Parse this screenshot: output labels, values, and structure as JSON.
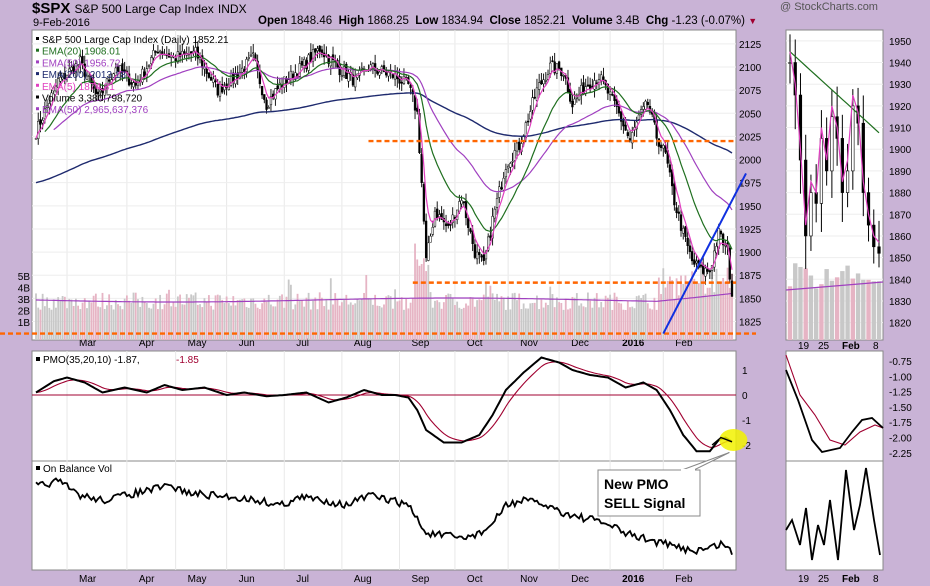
{
  "header": {
    "symbol": "$SPX",
    "name": "S&P 500 Large Cap Index",
    "exchange": "INDX",
    "date": "9-Feb-2016",
    "watermark": "@ StockCharts.com",
    "ohlc_labels": {
      "open": "Open",
      "high": "High",
      "low": "Low",
      "close": "Close",
      "volume": "Volume",
      "chg": "Chg"
    },
    "ohlc_values": {
      "open": "1848.46",
      "high": "1868.25",
      "low": "1834.94",
      "close": "1852.21",
      "volume": "3.4B",
      "chg": "-1.23 (-0.07%)"
    },
    "chg_arrow": "down-triangle-icon"
  },
  "colors": {
    "background": "#c9b3d6",
    "panel": "#ffffff",
    "ema20": "#1f6f1f",
    "ema50": "#a040c0",
    "ema200": "#1e2a6e",
    "ema5": "#e040c0",
    "volume_up": "#c8c8c8",
    "volume_down": "#e6b4c4",
    "support": "#ff6600",
    "trendline": "#1030e0",
    "pmo": "#000000",
    "pmo_signal": "#a00030",
    "zero_line": "#a00030",
    "highlight": "#f2f200"
  },
  "legend": [
    {
      "text": "S&P 500 Large Cap Index (Daily) 1852.21",
      "color": "#000000"
    },
    {
      "text": "EMA(20) 1908.01",
      "color": "#1f6f1f"
    },
    {
      "text": "EMA(50) 1956.72",
      "color": "#a040c0"
    },
    {
      "text": "EMA(200) 2013.18",
      "color": "#1e2a6e"
    },
    {
      "text": "EMA(5) 1874.81",
      "color": "#e040c0"
    },
    {
      "text": "Volume 3,380,798,720",
      "color": "#000000"
    },
    {
      "text": "EMA(50) 2,965,637,376",
      "color": "#a040c0"
    }
  ],
  "pmo_legend": {
    "label": "PMO(35,20,10)",
    "pmo": "-1.87",
    "signal": "-1.85"
  },
  "obv_legend": {
    "label": "On Balance Vol"
  },
  "annotation": {
    "line1": "New PMO",
    "line2": "SELL Signal"
  },
  "chart_data": [
    {
      "type": "candlestick",
      "name": "price-panel",
      "ylim": [
        1805,
        2140
      ],
      "yticks": [
        1825,
        1850,
        1875,
        1900,
        1925,
        1950,
        1975,
        2000,
        2025,
        2050,
        2075,
        2100,
        2125
      ],
      "volume_ticks": [
        "1B",
        "2B",
        "3B",
        "4B",
        "5B"
      ],
      "xticks": [
        "Mar",
        "Apr",
        "May",
        "Jun",
        "Jul",
        "Aug",
        "Sep",
        "Oct",
        "Nov",
        "Dec",
        "2016",
        "Feb"
      ],
      "close_anchors": [
        [
          0,
          2030
        ],
        [
          10,
          2085
        ],
        [
          20,
          2105
        ],
        [
          28,
          2065
        ],
        [
          36,
          2100
        ],
        [
          45,
          2080
        ],
        [
          55,
          2120
        ],
        [
          62,
          2110
        ],
        [
          72,
          2115
        ],
        [
          82,
          2075
        ],
        [
          90,
          2090
        ],
        [
          98,
          2110
        ],
        [
          104,
          2060
        ],
        [
          110,
          2080
        ],
        [
          120,
          2100
        ],
        [
          128,
          2120
        ],
        [
          136,
          2100
        ],
        [
          144,
          2085
        ],
        [
          150,
          2100
        ],
        [
          162,
          2090
        ],
        [
          168,
          2080
        ],
        [
          172,
          2050
        ],
        [
          174,
          1975
        ],
        [
          176,
          1890
        ],
        [
          180,
          1945
        ],
        [
          186,
          1925
        ],
        [
          192,
          1960
        ],
        [
          198,
          1900
        ],
        [
          202,
          1885
        ],
        [
          206,
          1935
        ],
        [
          212,
          1995
        ],
        [
          218,
          2015
        ],
        [
          226,
          2075
        ],
        [
          232,
          2100
        ],
        [
          238,
          2095
        ],
        [
          242,
          2060
        ],
        [
          248,
          2080
        ],
        [
          254,
          2090
        ],
        [
          262,
          2055
        ],
        [
          268,
          2020
        ],
        [
          272,
          2045
        ],
        [
          276,
          2060
        ],
        [
          280,
          2025
        ],
        [
          284,
          2005
        ],
        [
          288,
          1955
        ],
        [
          292,
          1920
        ],
        [
          296,
          1890
        ],
        [
          300,
          1880
        ],
        [
          304,
          1880
        ],
        [
          308,
          1920
        ],
        [
          312,
          1900
        ],
        [
          314,
          1852
        ]
      ],
      "support_levels": [
        2020,
        1867,
        1812
      ],
      "trendline": {
        "from": [
          283,
          1812
        ],
        "to": [
          314,
          1985
        ]
      },
      "ema20_last": 1908.01,
      "ema50_last": 1956.72,
      "ema200_last": 2013.18,
      "ema5_last": 1874.81
    },
    {
      "type": "candlestick",
      "name": "zoom-price-panel",
      "ylim": [
        1812,
        1955
      ],
      "yticks": [
        1820,
        1830,
        1840,
        1850,
        1860,
        1870,
        1880,
        1890,
        1900,
        1910,
        1920,
        1930,
        1940,
        1950
      ],
      "xticks": [
        "19",
        "25",
        "Feb",
        "8"
      ]
    },
    {
      "type": "line",
      "name": "pmo-panel",
      "ylim": [
        -2.4,
        1.6
      ],
      "yticks": [
        "1",
        "0",
        "-1",
        "-2"
      ],
      "zoom_yticks": [
        "-0.75",
        "-1.00",
        "-1.25",
        "-1.50",
        "-1.75",
        "-2.00",
        "-2.25"
      ],
      "pmo_anchors": [
        [
          0,
          0.1
        ],
        [
          8,
          0.55
        ],
        [
          14,
          0.7
        ],
        [
          22,
          0.5
        ],
        [
          30,
          0.1
        ],
        [
          40,
          0.3
        ],
        [
          50,
          0.1
        ],
        [
          58,
          0.4
        ],
        [
          66,
          0.2
        ],
        [
          76,
          0.3
        ],
        [
          86,
          0.0
        ],
        [
          94,
          0.1
        ],
        [
          104,
          -0.05
        ],
        [
          112,
          0.0
        ],
        [
          122,
          0.1
        ],
        [
          132,
          -0.3
        ],
        [
          140,
          -0.1
        ],
        [
          148,
          0.2
        ],
        [
          156,
          0.0
        ],
        [
          162,
          0.0
        ],
        [
          168,
          -0.1
        ],
        [
          172,
          -0.6
        ],
        [
          176,
          -1.4
        ],
        [
          184,
          -1.9
        ],
        [
          192,
          -1.9
        ],
        [
          200,
          -1.6
        ],
        [
          206,
          -0.8
        ],
        [
          212,
          0.2
        ],
        [
          220,
          0.9
        ],
        [
          228,
          1.5
        ],
        [
          236,
          1.3
        ],
        [
          242,
          1.0
        ],
        [
          250,
          0.8
        ],
        [
          258,
          0.7
        ],
        [
          266,
          0.3
        ],
        [
          274,
          0.5
        ],
        [
          280,
          0.2
        ],
        [
          286,
          -0.6
        ],
        [
          292,
          -1.6
        ],
        [
          298,
          -2.25
        ],
        [
          304,
          -2.25
        ],
        [
          308,
          -1.8
        ],
        [
          311,
          -1.7
        ],
        [
          314,
          -1.87
        ]
      ],
      "pmo_last": -1.87,
      "signal_last": -1.85
    },
    {
      "type": "line",
      "name": "obv-panel",
      "obv_anchors": [
        [
          0,
          0.2
        ],
        [
          10,
          0.15
        ],
        [
          20,
          0.3
        ],
        [
          30,
          0.35
        ],
        [
          40,
          0.3
        ],
        [
          50,
          0.25
        ],
        [
          60,
          0.2
        ],
        [
          70,
          0.28
        ],
        [
          80,
          0.3
        ],
        [
          90,
          0.32
        ],
        [
          100,
          0.35
        ],
        [
          110,
          0.4
        ],
        [
          120,
          0.32
        ],
        [
          130,
          0.35
        ],
        [
          140,
          0.4
        ],
        [
          150,
          0.3
        ],
        [
          160,
          0.35
        ],
        [
          168,
          0.4
        ],
        [
          172,
          0.55
        ],
        [
          176,
          0.7
        ],
        [
          184,
          0.72
        ],
        [
          192,
          0.75
        ],
        [
          200,
          0.7
        ],
        [
          206,
          0.6
        ],
        [
          212,
          0.4
        ],
        [
          220,
          0.35
        ],
        [
          230,
          0.4
        ],
        [
          240,
          0.5
        ],
        [
          250,
          0.55
        ],
        [
          258,
          0.6
        ],
        [
          266,
          0.7
        ],
        [
          274,
          0.75
        ],
        [
          282,
          0.8
        ],
        [
          290,
          0.85
        ],
        [
          298,
          0.88
        ],
        [
          304,
          0.85
        ],
        [
          310,
          0.8
        ],
        [
          314,
          0.9
        ]
      ],
      "zoom_xticks": [
        "19",
        "25",
        "Feb",
        "8"
      ]
    }
  ]
}
